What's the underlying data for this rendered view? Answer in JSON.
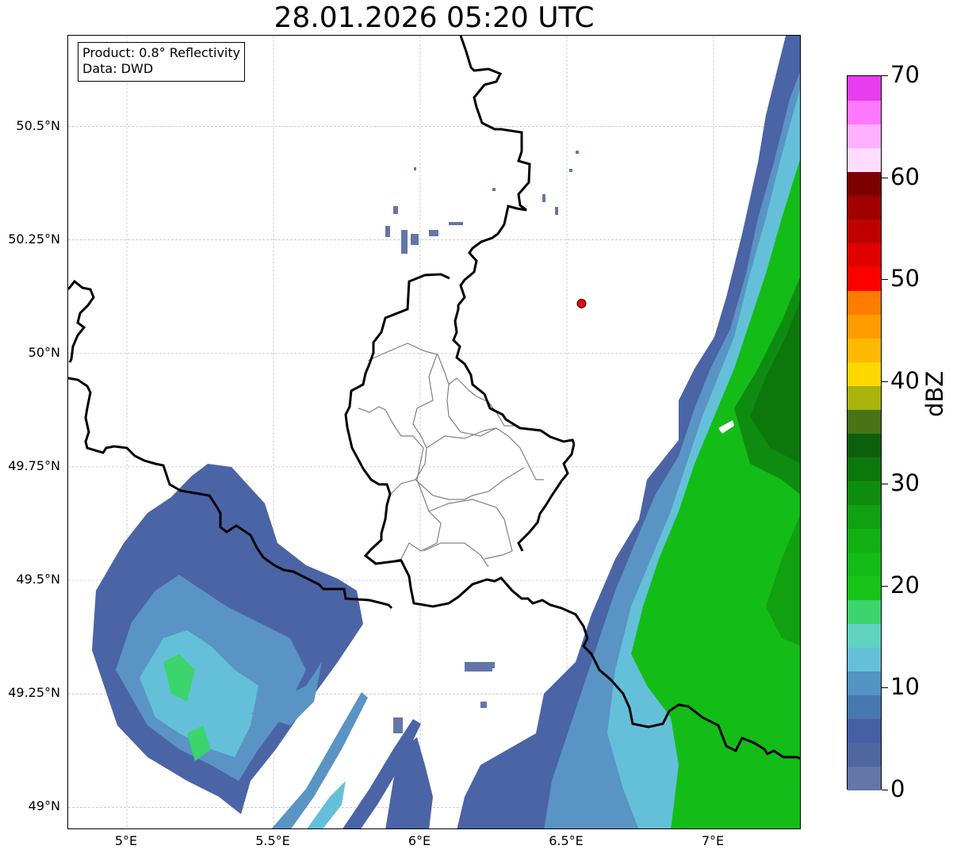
{
  "title": "28.01.2026 05:20 UTC",
  "info": {
    "product": "Product: 0.8° Reflectivity",
    "data": "Data: DWD"
  },
  "map": {
    "lon_range": [
      4.8,
      7.3
    ],
    "lat_range": [
      48.95,
      50.7
    ],
    "lon_ticks": [
      {
        "value": 5.0,
        "label": "5°E"
      },
      {
        "value": 5.5,
        "label": "5.5°E"
      },
      {
        "value": 6.0,
        "label": "6°E"
      },
      {
        "value": 6.5,
        "label": "6.5°E"
      },
      {
        "value": 7.0,
        "label": "7°E"
      }
    ],
    "lat_ticks": [
      {
        "value": 50.5,
        "label": "50.5°N"
      },
      {
        "value": 50.25,
        "label": "50.25°N"
      },
      {
        "value": 50.0,
        "label": "50°N"
      },
      {
        "value": 49.75,
        "label": "49.75°N"
      },
      {
        "value": 49.5,
        "label": "49.5°N"
      },
      {
        "value": 49.25,
        "label": "49.25°N"
      },
      {
        "value": 49.0,
        "label": "49°N"
      }
    ],
    "grid": true,
    "radar_site": {
      "lon": 6.55,
      "lat": 50.11,
      "color": "#ff0000"
    }
  },
  "colorbar": {
    "label": "dBZ",
    "min": 0,
    "max": 70,
    "step": 2.5,
    "tick_values": [
      0,
      10,
      20,
      30,
      40,
      50,
      60,
      70
    ],
    "colors": [
      "#6476a8",
      "#50669e",
      "#4660a4",
      "#4878b0",
      "#5294c4",
      "#64c0d8",
      "#60d4c0",
      "#3cd46c",
      "#18c418",
      "#14bc18",
      "#12b012",
      "#10a010",
      "#0e8c10",
      "#0c780c",
      "#0c600c",
      "#487414",
      "#a8b40c",
      "#ffd800",
      "#ffb800",
      "#ff9c00",
      "#ff7c00",
      "#ff0000",
      "#e00000",
      "#c00000",
      "#a00000",
      "#7c0000",
      "#ffdcff",
      "#ffb0ff",
      "#ff78ff",
      "#e83cf0"
    ]
  },
  "colors": {
    "border_country": "#000000",
    "border_admin": "#808080"
  }
}
